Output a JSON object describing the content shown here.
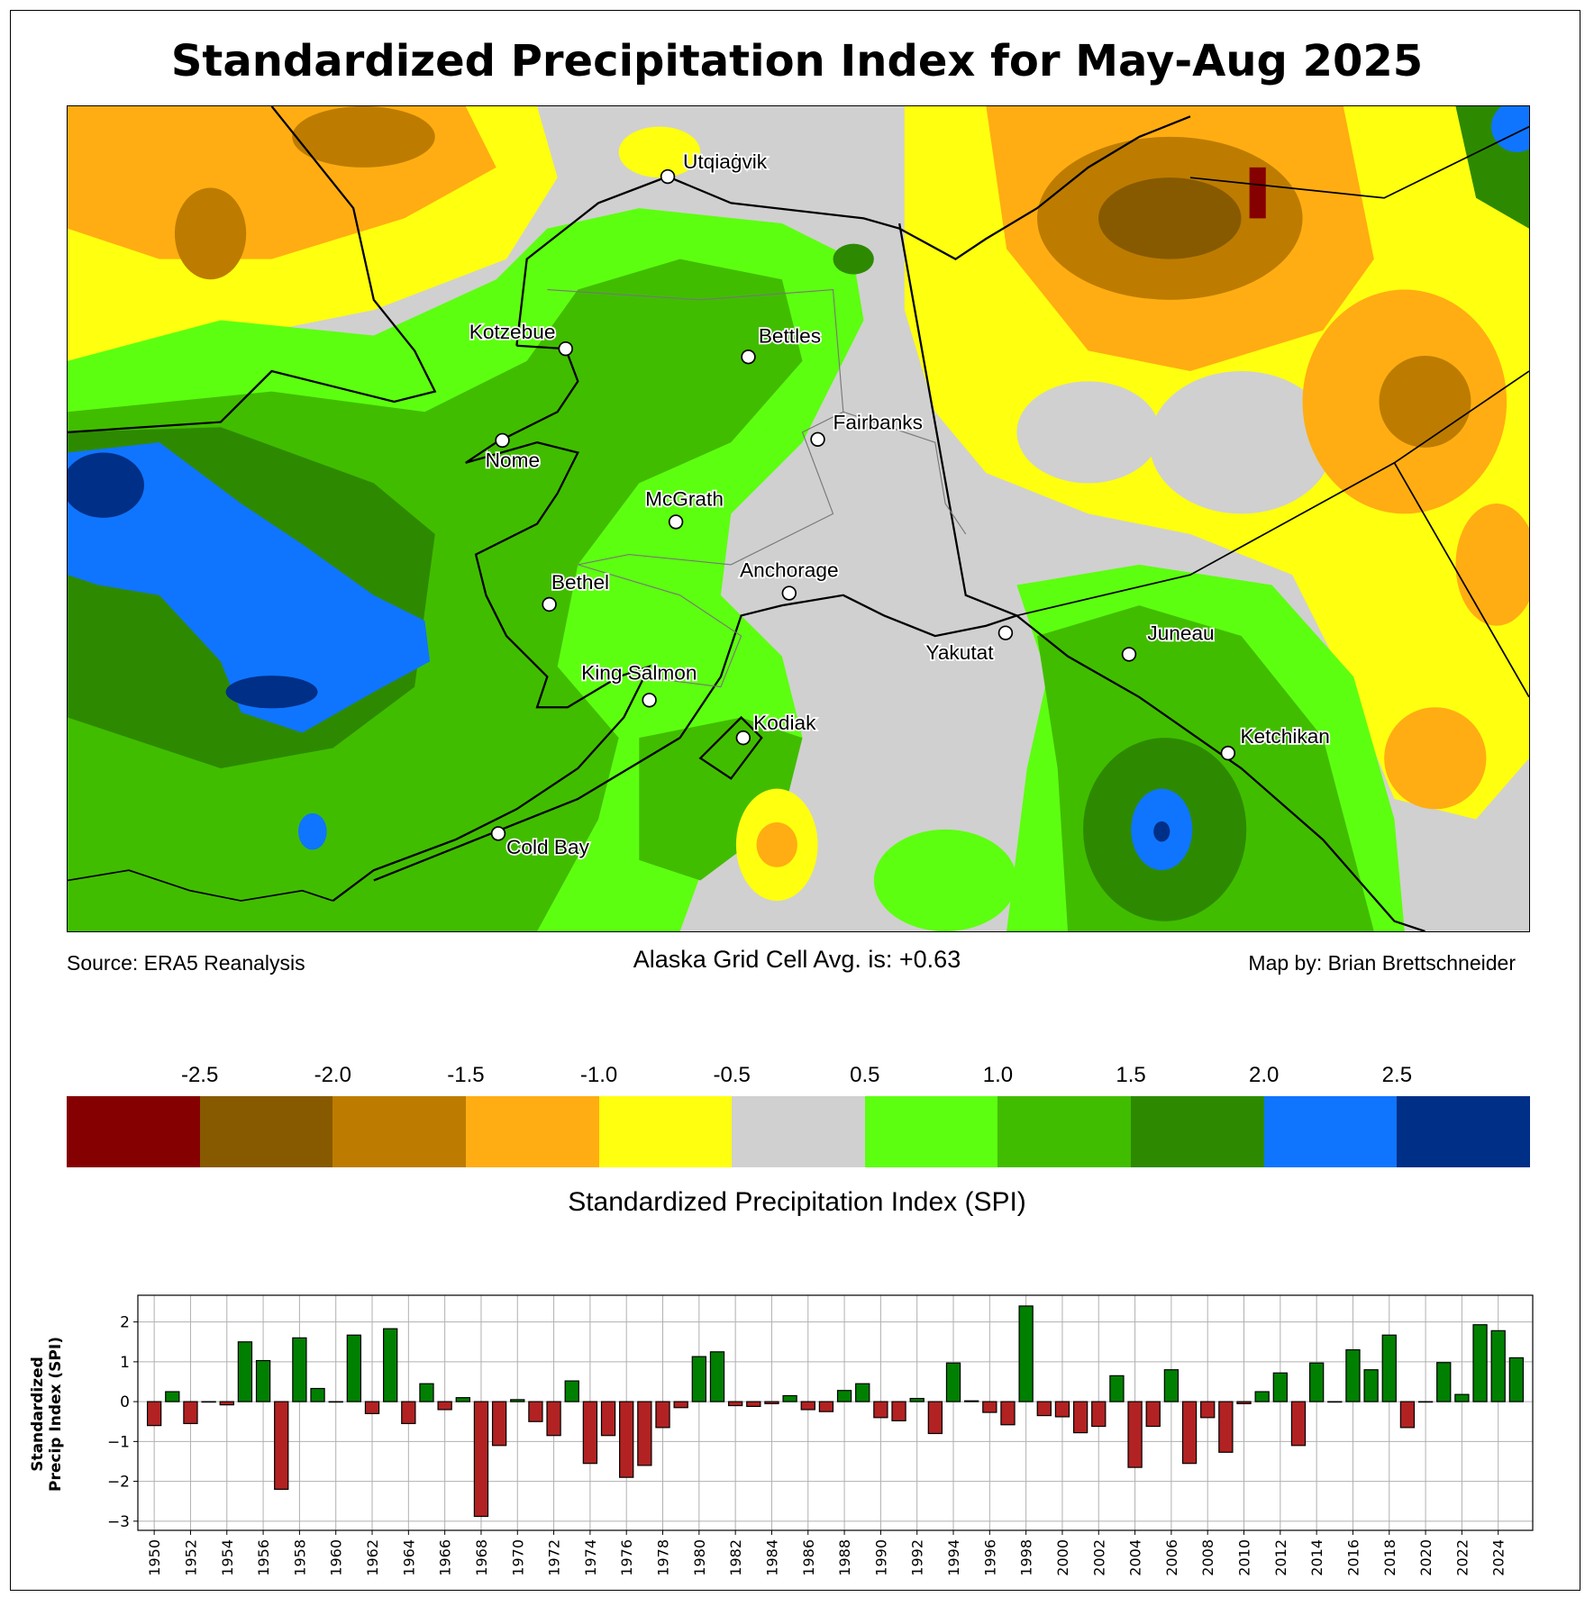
{
  "title": "Standardized Precipitation Index for May-Aug 2025",
  "map": {
    "cities": [
      {
        "name": "Utqiaġvik"
      },
      {
        "name": "Kotzebue"
      },
      {
        "name": "Bettles"
      },
      {
        "name": "Fairbanks"
      },
      {
        "name": "Nome"
      },
      {
        "name": "McGrath"
      },
      {
        "name": "Bethel"
      },
      {
        "name": "Anchorage"
      },
      {
        "name": "Yakutat"
      },
      {
        "name": "Juneau"
      },
      {
        "name": "King Salmon"
      },
      {
        "name": "Kodiak"
      },
      {
        "name": "Ketchikan"
      },
      {
        "name": "Cold Bay"
      }
    ]
  },
  "footer": {
    "source": "Source: ERA5 Reanalysis",
    "average": "Alaska Grid Cell Avg. is: +0.63",
    "credit": "Map by: Brian Brettschneider"
  },
  "colorbar": {
    "labels": [
      "-2.5",
      "-2.0",
      "-1.5",
      "-1.0",
      "-0.5",
      "0.5",
      "1.0",
      "1.5",
      "2.0",
      "2.5"
    ],
    "colors": [
      "#850000",
      "#875a00",
      "#bd7c00",
      "#ffad12",
      "#ffff10",
      "#d0d0d0",
      "#5dff10",
      "#41bd00",
      "#2d8a00",
      "#0f75ff",
      "#002f87"
    ],
    "title": "Standardized Precipitation Index (SPI)"
  },
  "chart_data": {
    "type": "bar",
    "ylabel": "Standardized\nPrecip Index (SPI)",
    "ylabel_line1": "Standardized",
    "ylabel_line2": "Precip Index (SPI)",
    "xlabel": "",
    "ylim": [
      -3.23,
      2.67
    ],
    "xlim": [
      1949.1,
      2025.9
    ],
    "yticks": [
      -3,
      -2,
      -1,
      0,
      1,
      2
    ],
    "positive_color": "#008000",
    "negative_color": "#b22222",
    "grid": true,
    "x": [
      1950,
      1951,
      1952,
      1953,
      1954,
      1955,
      1956,
      1957,
      1958,
      1959,
      1960,
      1961,
      1962,
      1963,
      1964,
      1965,
      1966,
      1967,
      1968,
      1969,
      1970,
      1971,
      1972,
      1973,
      1974,
      1975,
      1976,
      1977,
      1978,
      1979,
      1980,
      1981,
      1982,
      1983,
      1984,
      1985,
      1986,
      1987,
      1988,
      1989,
      1990,
      1991,
      1992,
      1993,
      1994,
      1995,
      1996,
      1997,
      1998,
      1999,
      2000,
      2001,
      2002,
      2003,
      2004,
      2005,
      2006,
      2007,
      2008,
      2009,
      2010,
      2011,
      2012,
      2013,
      2014,
      2015,
      2016,
      2017,
      2018,
      2019,
      2020,
      2021,
      2022,
      2023,
      2024,
      2025
    ],
    "values": [
      -0.6,
      0.25,
      -0.55,
      0.0,
      -0.08,
      1.5,
      1.03,
      -2.2,
      1.6,
      0.33,
      0.0,
      1.67,
      -0.3,
      1.83,
      -0.55,
      0.45,
      -0.2,
      0.1,
      -2.88,
      -1.1,
      0.05,
      -0.5,
      -0.85,
      0.52,
      -1.55,
      -0.85,
      -1.9,
      -1.6,
      -0.65,
      -0.15,
      1.13,
      1.25,
      -0.1,
      -0.12,
      -0.05,
      0.15,
      -0.2,
      -0.25,
      0.28,
      0.45,
      -0.4,
      -0.48,
      0.08,
      -0.8,
      0.97,
      0.02,
      -0.27,
      -0.58,
      2.4,
      -0.35,
      -0.38,
      -0.78,
      -0.62,
      0.65,
      -1.65,
      -0.62,
      0.8,
      -1.55,
      -0.4,
      -1.27,
      -0.05,
      0.25,
      0.72,
      -1.1,
      0.97,
      0.0,
      1.3,
      0.8,
      1.67,
      -0.65,
      0.0,
      0.98,
      0.18,
      1.93,
      1.78,
      1.1
    ]
  }
}
